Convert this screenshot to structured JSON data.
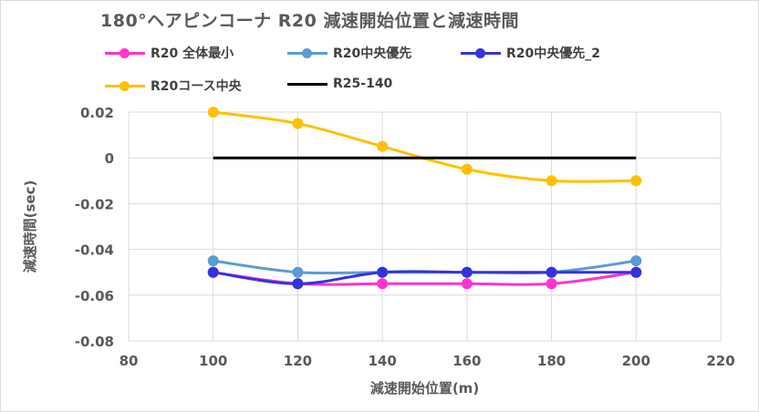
{
  "chart_data": {
    "type": "line",
    "title": "180°ヘアピンコーナ R20 減速開始位置と減速時間",
    "xlabel": "減速開始位置(m)",
    "ylabel": "減速時間(sec)",
    "xlim": [
      80,
      220
    ],
    "ylim": [
      -0.08,
      0.02
    ],
    "xticks": [
      80,
      100,
      120,
      140,
      160,
      180,
      200,
      220
    ],
    "yticks": [
      0.02,
      0,
      -0.02,
      -0.04,
      -0.06,
      -0.08
    ],
    "xtick_labels": [
      "80",
      "100",
      "120",
      "140",
      "160",
      "180",
      "200",
      "220"
    ],
    "ytick_labels": [
      "0.02",
      "0",
      "-0.02",
      "-0.04",
      "-0.06",
      "-0.08"
    ],
    "grid": "vertical and horizontal major",
    "legend_position": "top",
    "series": [
      {
        "name": "R20 全体最小",
        "color": "#ff33cc",
        "marker": true,
        "smooth": true,
        "x": [
          100,
          120,
          140,
          160,
          180,
          200
        ],
        "y": [
          -0.05,
          -0.055,
          -0.055,
          -0.055,
          -0.055,
          -0.05
        ]
      },
      {
        "name": "R20中央優先",
        "color": "#5b9bd5",
        "marker": true,
        "smooth": true,
        "x": [
          100,
          120,
          140,
          160,
          180,
          200
        ],
        "y": [
          -0.045,
          -0.05,
          -0.05,
          -0.05,
          -0.05,
          -0.045
        ]
      },
      {
        "name": "R20中央優先_2",
        "color": "#3333dd",
        "marker": true,
        "smooth": true,
        "x": [
          100,
          120,
          140,
          160,
          180,
          200
        ],
        "y": [
          -0.05,
          -0.055,
          -0.05,
          -0.05,
          -0.05,
          -0.05
        ]
      },
      {
        "name": "R20コース中央",
        "color": "#ffc000",
        "marker": true,
        "smooth": true,
        "x": [
          100,
          120,
          140,
          160,
          180,
          200
        ],
        "y": [
          0.02,
          0.015,
          0.005,
          -0.005,
          -0.01,
          -0.01
        ]
      },
      {
        "name": "R25-140",
        "color": "#000000",
        "marker": false,
        "smooth": false,
        "x": [
          100,
          200
        ],
        "y": [
          0,
          0
        ]
      }
    ]
  }
}
